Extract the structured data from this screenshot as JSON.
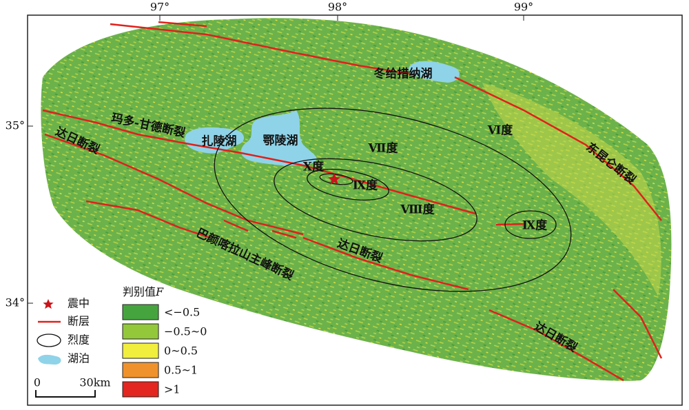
{
  "map": {
    "x_ticks": [
      "97°",
      "98°",
      "99°"
    ],
    "y_ticks": [
      "35°",
      "34°"
    ],
    "labels": [
      "冬给措纳湖",
      "玛多-甘德断裂",
      "扎陵湖",
      "鄂陵湖",
      "Ⅶ度",
      "Ⅵ度",
      "东昆仑断裂",
      "达日断裂",
      "Ⅹ度",
      "Ⅸ度",
      "Ⅷ度",
      "Ⅸ度",
      "达日断裂",
      "巴颜喀拉山主峰断裂",
      "达日断裂"
    ],
    "legend_symbols": [
      "震中",
      "断层",
      "烈度",
      "湖泊"
    ],
    "legend_title": "判别值",
    "legend_variable": "F",
    "legend_classes": [
      {
        "label": "<−0.5",
        "color": "#46a43f"
      },
      {
        "label": "−0.5~0",
        "color": "#93c83b"
      },
      {
        "label": "0~0.5",
        "color": "#f1ee3d"
      },
      {
        "label": "0.5~1",
        "color": "#f0922b"
      },
      {
        "label": ">1",
        "color": "#e3261f"
      }
    ],
    "scale_bar": [
      "0",
      "30km"
    ]
  }
}
